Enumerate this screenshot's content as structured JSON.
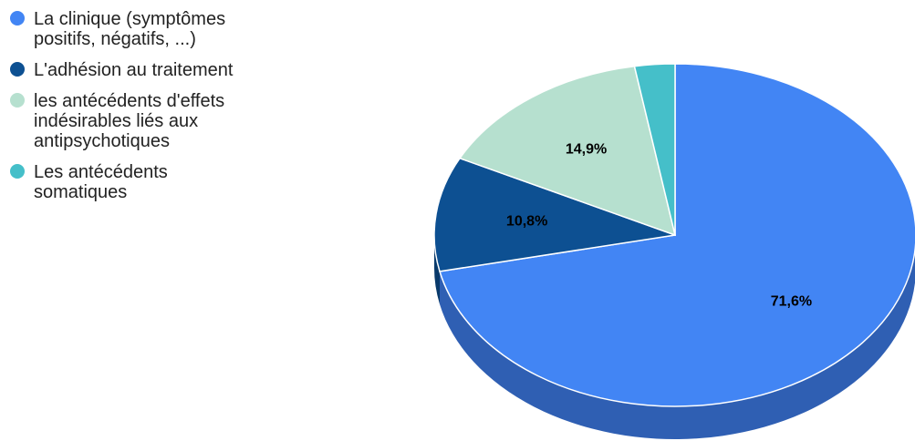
{
  "chart_data": {
    "type": "pie",
    "style": "3d",
    "title": "",
    "legend_position": "left",
    "slices": [
      {
        "label": [
          "La clinique (symptômes",
          "positifs, négatifs, ...)"
        ],
        "value": 71.6,
        "display": "71,6%",
        "color": "#4285f4",
        "side_color": "#2f5fb3"
      },
      {
        "label": [
          "L'adhésion au traitement"
        ],
        "value": 10.8,
        "display": "10,8%",
        "color": "#0d5092",
        "side_color": "#093a6b"
      },
      {
        "label": [
          "les antécédents d'effets",
          "indésirables liés aux",
          "antipsychotiques"
        ],
        "value": 14.9,
        "display": "14,9%",
        "color": "#b6e0cf",
        "side_color": "#8fb8a7"
      },
      {
        "label": [
          "Les antécédents",
          "somatiques"
        ],
        "value": 2.7,
        "display": "",
        "color": "#45bfc9",
        "side_color": "#2f8f97"
      }
    ]
  }
}
